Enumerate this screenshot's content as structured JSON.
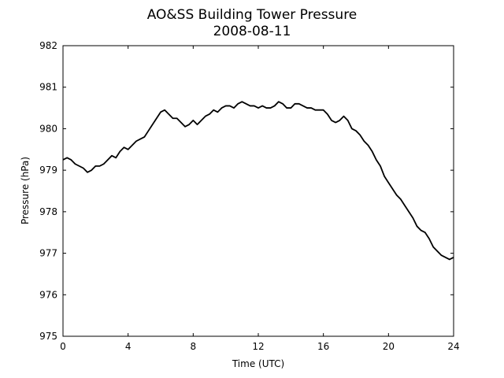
{
  "chart_data": {
    "type": "line",
    "title": "AO&SS Building Tower Pressure",
    "subtitle": "2008-08-11",
    "xlabel": "Time (UTC)",
    "ylabel": "Pressure (hPa)",
    "xlim": [
      0,
      24
    ],
    "ylim": [
      975,
      982
    ],
    "xticks": [
      0,
      4,
      8,
      12,
      16,
      20,
      24
    ],
    "yticks": [
      975,
      976,
      977,
      978,
      979,
      980,
      981,
      982
    ],
    "grid": false,
    "line_color": "#000000",
    "series": [
      {
        "x": [
          0,
          0.25,
          0.5,
          0.75,
          1.0,
          1.25,
          1.5,
          1.75,
          2.0,
          2.25,
          2.5,
          2.75,
          3.0,
          3.25,
          3.5,
          3.75,
          4.0,
          4.25,
          4.5,
          4.75,
          5.0,
          5.25,
          5.5,
          5.75,
          6.0,
          6.25,
          6.5,
          6.75,
          7.0,
          7.25,
          7.5,
          7.75,
          8.0,
          8.25,
          8.5,
          8.75,
          9.0,
          9.25,
          9.5,
          9.75,
          10.0,
          10.25,
          10.5,
          10.75,
          11.0,
          11.25,
          11.5,
          11.75,
          12.0,
          12.25,
          12.5,
          12.75,
          13.0,
          13.25,
          13.5,
          13.75,
          14.0,
          14.25,
          14.5,
          14.75,
          15.0,
          15.25,
          15.5,
          15.75,
          16.0,
          16.25,
          16.5,
          16.75,
          17.0,
          17.25,
          17.5,
          17.75,
          18.0,
          18.25,
          18.5,
          18.75,
          19.0,
          19.25,
          19.5,
          19.75,
          20.0,
          20.25,
          20.5,
          20.75,
          21.0,
          21.25,
          21.5,
          21.75,
          22.0,
          22.25,
          22.5,
          22.75,
          23.0,
          23.25,
          23.5,
          23.75,
          24.0
        ],
        "values": [
          979.25,
          979.3,
          979.25,
          979.15,
          979.1,
          979.05,
          978.95,
          979.0,
          979.1,
          979.1,
          979.15,
          979.25,
          979.35,
          979.3,
          979.45,
          979.55,
          979.5,
          979.6,
          979.7,
          979.75,
          979.8,
          979.95,
          980.1,
          980.25,
          980.4,
          980.45,
          980.35,
          980.25,
          980.25,
          980.15,
          980.05,
          980.1,
          980.2,
          980.1,
          980.2,
          980.3,
          980.35,
          980.45,
          980.4,
          980.5,
          980.55,
          980.55,
          980.5,
          980.6,
          980.65,
          980.6,
          980.55,
          980.55,
          980.5,
          980.55,
          980.5,
          980.5,
          980.55,
          980.65,
          980.6,
          980.5,
          980.5,
          980.6,
          980.6,
          980.55,
          980.5,
          980.5,
          980.45,
          980.45,
          980.45,
          980.35,
          980.2,
          980.15,
          980.2,
          980.3,
          980.2,
          980.0,
          979.95,
          979.85,
          979.7,
          979.6,
          979.45,
          979.25,
          979.1,
          978.85,
          978.7,
          978.55,
          978.4,
          978.3,
          978.15,
          978.0,
          977.85,
          977.65,
          977.55,
          977.5,
          977.35,
          977.15,
          977.05,
          976.95,
          976.9,
          976.85,
          976.9
        ]
      }
    ]
  }
}
